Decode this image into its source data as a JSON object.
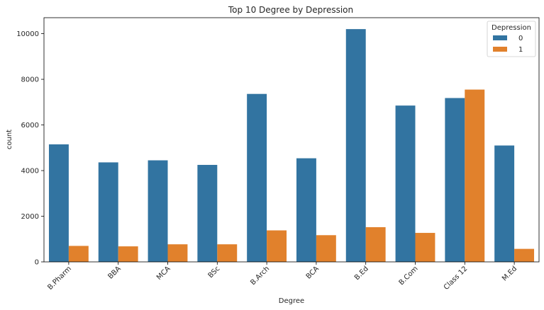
{
  "chart_data": {
    "type": "bar",
    "title": "Top 10 Degree by Depression",
    "xlabel": "Degree",
    "ylabel": "count",
    "categories": [
      "B.Pharm",
      "BBA",
      "MCA",
      "BSc",
      "B.Arch",
      "BCA",
      "B.Ed",
      "B.Com",
      "Class 12",
      "M.Ed"
    ],
    "series": [
      {
        "name": "0",
        "color": "#3274a1",
        "values": [
          5150,
          4360,
          4450,
          4250,
          7360,
          4540,
          10200,
          6850,
          7180,
          5100
        ]
      },
      {
        "name": "1",
        "color": "#e1812c",
        "values": [
          700,
          680,
          770,
          770,
          1380,
          1170,
          1520,
          1270,
          7550,
          570
        ]
      }
    ],
    "ylim": [
      0,
      10700
    ],
    "yticks": [
      0,
      2000,
      4000,
      6000,
      8000,
      10000
    ],
    "legend": {
      "title": "Depression",
      "placement": "top-right"
    },
    "grid": false
  }
}
